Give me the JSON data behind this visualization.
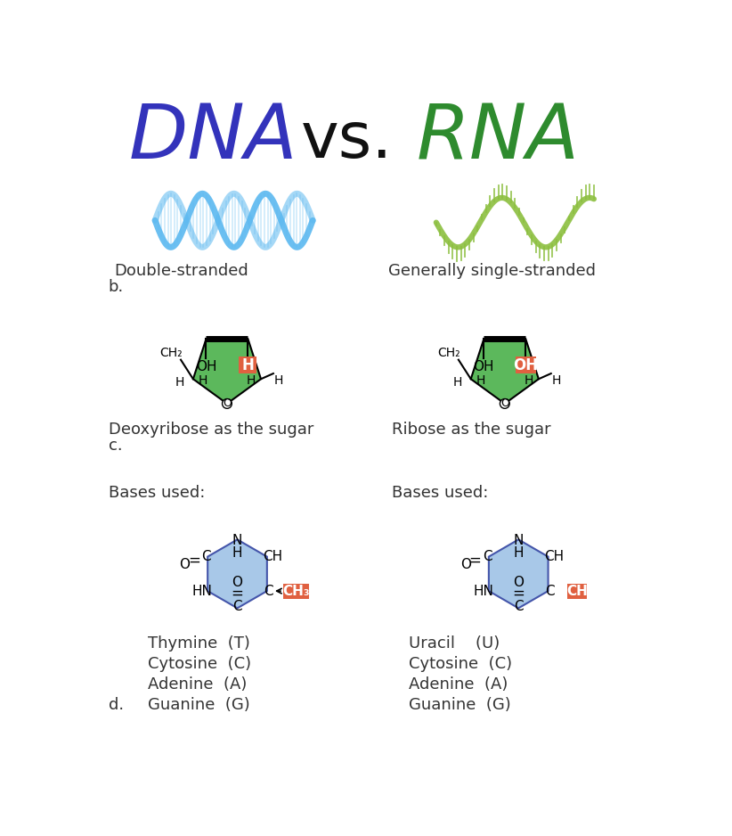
{
  "title_dna": "DNA",
  "title_vs": "vs.",
  "title_rna": "RNA",
  "dna_color": "#3333BB",
  "rna_color": "#2E8B2E",
  "vs_color": "#111111",
  "bg_color": "#FFFFFF",
  "dna_helix_color": "#5BB8F0",
  "rna_helix_color": "#8CBF3F",
  "sugar_fill": "#5CB85C",
  "sugar_edge": "#000000",
  "highlight_color": "#E06040",
  "label_a_strand": "Double-stranded",
  "label_b_strand": "Generally single-stranded",
  "label_b": "b.",
  "label_c": "c.",
  "label_d": "d.",
  "dna_sugar_label": "Deoxyribose as the sugar",
  "rna_sugar_label": "Ribose as the sugar",
  "dna_bases_label": "Bases used:",
  "rna_bases_label": "Bases used:",
  "dna_base_highlight": "CH₃",
  "rna_base_highlight": "CH",
  "dna_bases_list": [
    "Thymine  (T)",
    "Cytosine  (C)",
    "Adenine  (A)",
    "Guanine  (G)"
  ],
  "rna_bases_list": [
    "Uracil    (U)",
    "Cytosine  (C)",
    "Adenine  (A)",
    "Guanine  (G)"
  ],
  "hexagon_fill": "#A8C8E8",
  "hexagon_edge": "#4455AA"
}
